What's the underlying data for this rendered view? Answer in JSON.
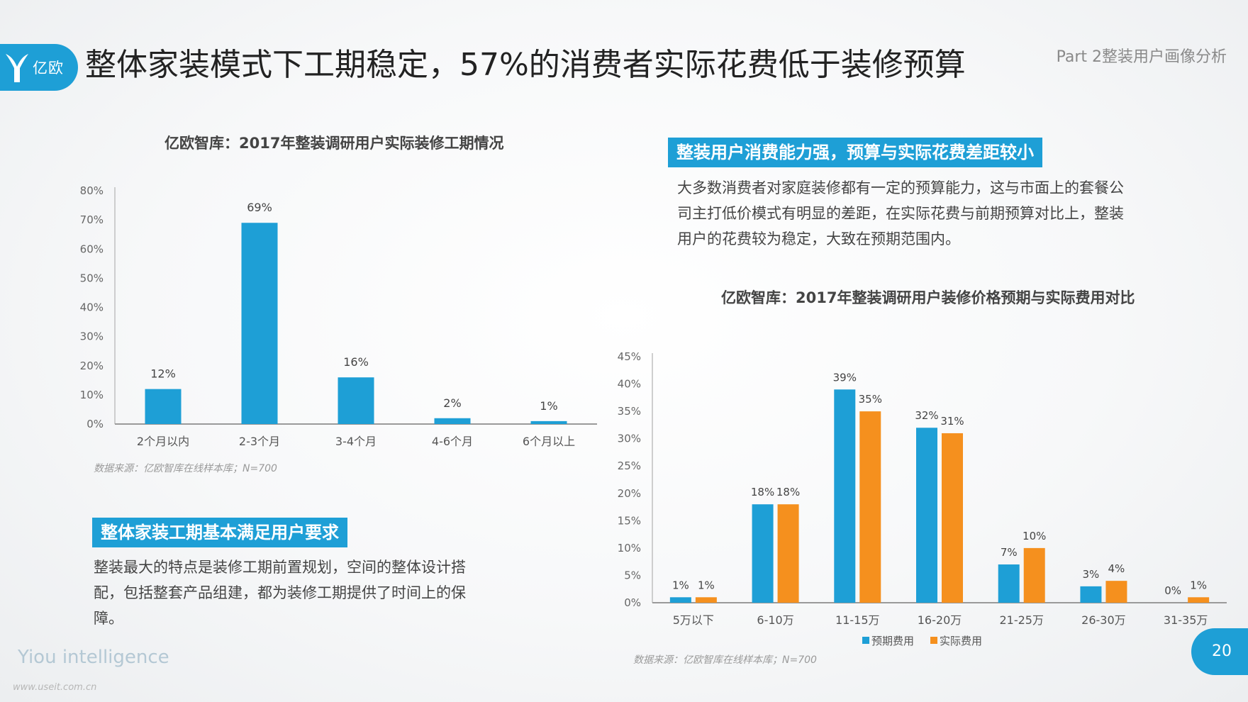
{
  "header": {
    "logo_text": "亿欧",
    "title": "整体家装模式下工期稳定，57%的消费者实际花费低于装修预算",
    "part_label": "Part 2整装用户画像分析"
  },
  "left_section": {
    "header": "整体家装工期基本满足用户要求",
    "paragraph": "整装最大的特点是装修工期前置规划，空间的整体设计搭配，包括整套产品组建，都为装修工期提供了时间上的保障。"
  },
  "right_section": {
    "header": "整装用户消费能力强，预算与实际花费差距较小",
    "paragraph": "大多数消费者对家庭装修都有一定的预算能力，这与市面上的套餐公司主打低价模式有明显的差距，在实际花费与前期预算对比上，整装用户的花费较为稳定，大致在预期范围内。"
  },
  "chart_data": [
    {
      "type": "bar",
      "title": "亿欧智库：2017年整装调研用户实际装修工期情况",
      "categories": [
        "2个月以内",
        "2-3个月",
        "3-4个月",
        "4-6个月",
        "6个月以上"
      ],
      "values": [
        12,
        69,
        16,
        2,
        1
      ],
      "data_labels": [
        "12%",
        "69%",
        "16%",
        "2%",
        "1%"
      ],
      "ylim": [
        0,
        80
      ],
      "yticks": [
        "0%",
        "10%",
        "20%",
        "30%",
        "40%",
        "50%",
        "60%",
        "70%",
        "80%"
      ],
      "color": "#1e9fd6",
      "source": "数据来源：亿欧智库在线样本库；N=700",
      "grid": false
    },
    {
      "type": "bar",
      "title": "亿欧智库：2017年整装调研用户装修价格预期与实际费用对比",
      "categories": [
        "5万以下",
        "6-10万",
        "11-15万",
        "16-20万",
        "21-25万",
        "26-30万",
        "31-35万"
      ],
      "series": [
        {
          "name": "预期费用",
          "values": [
            1,
            18,
            39,
            32,
            7,
            3,
            0
          ],
          "labels": [
            "1%",
            "18%",
            "39%",
            "32%",
            "7%",
            "3%",
            "0%"
          ],
          "color": "#1e9fd6"
        },
        {
          "name": "实际费用",
          "values": [
            1,
            18,
            35,
            31,
            10,
            4,
            1
          ],
          "labels": [
            "1%",
            "18%",
            "35%",
            "31%",
            "10%",
            "4%",
            "1%"
          ],
          "color": "#f5901e"
        }
      ],
      "ylim": [
        0,
        45
      ],
      "yticks": [
        "0%",
        "5%",
        "10%",
        "15%",
        "20%",
        "25%",
        "30%",
        "35%",
        "40%",
        "45%"
      ],
      "legend": "bottom",
      "source": "数据来源：亿欧智库在线样本库；N=700",
      "grid": false
    }
  ],
  "footer": {
    "brand": "Yiou intelligence",
    "watermark": "www.useit.com.cn",
    "page_number": "20"
  }
}
